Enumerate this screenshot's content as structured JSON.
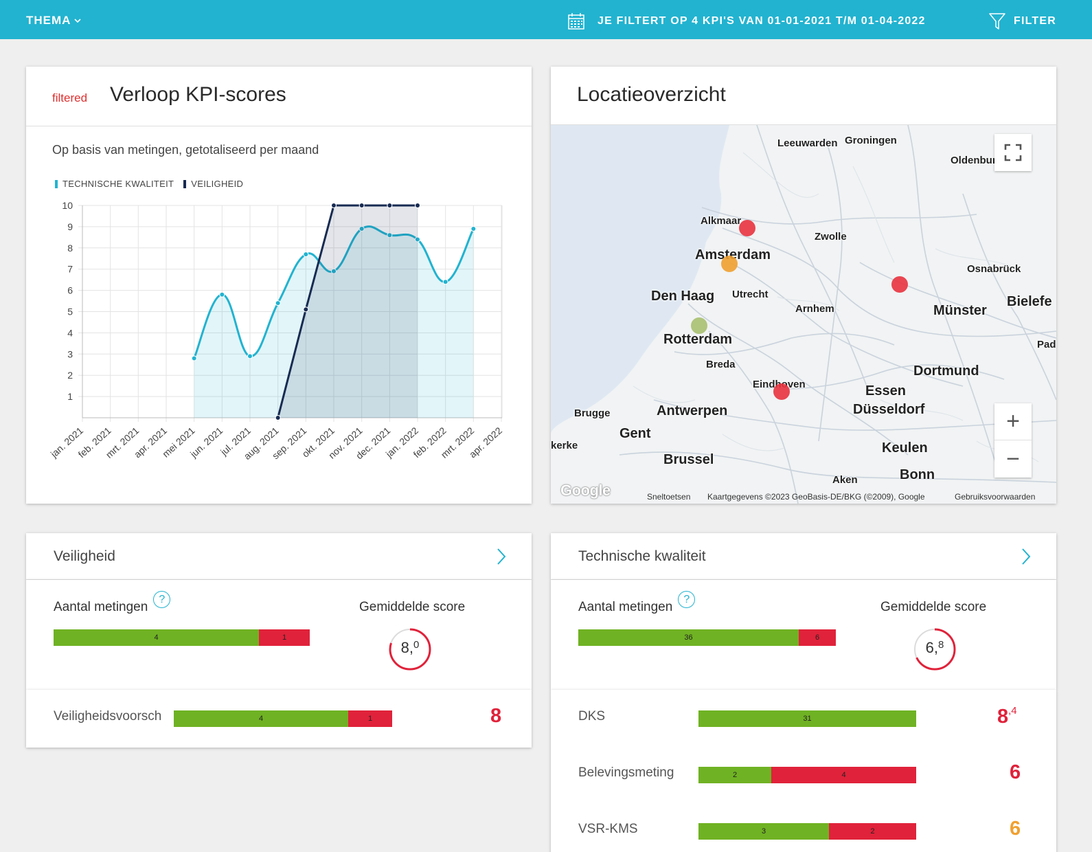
{
  "topbar": {
    "thema_label": "THEMA",
    "filter_text": "JE FILTERT OP 4 KPI'S VAN 01-01-2021 T/M 01-04-2022",
    "filter_button": "FILTER"
  },
  "chart_card": {
    "tag": "filtered",
    "title": "Verloop KPI-scores",
    "subtitle": "Op basis van metingen, getotaliseerd per maand"
  },
  "chart_data": {
    "type": "area",
    "categories": [
      "jan. 2021",
      "feb. 2021",
      "mrt. 2021",
      "apr. 2021",
      "mei 2021",
      "jun. 2021",
      "jul. 2021",
      "aug. 2021",
      "sep. 2021",
      "okt. 2021",
      "nov. 2021",
      "dec. 2021",
      "jan. 2022",
      "feb. 2022",
      "mrt. 2022",
      "apr. 2022"
    ],
    "ylim": [
      0,
      10
    ],
    "yticks": [
      1,
      2,
      3,
      4,
      5,
      6,
      7,
      8,
      9,
      10
    ],
    "legend_position": "top-left",
    "grid": true,
    "series": [
      {
        "name": "TECHNISCHE KWALITEIT",
        "color": "#22b3d0",
        "values": [
          null,
          null,
          null,
          null,
          2.8,
          5.8,
          2.9,
          5.4,
          7.7,
          6.9,
          8.9,
          8.6,
          8.4,
          6.4,
          8.9,
          null
        ]
      },
      {
        "name": "VEILIGHEID",
        "color": "#172b52",
        "values": [
          null,
          null,
          null,
          null,
          null,
          null,
          null,
          0,
          5.1,
          10,
          10,
          10,
          10,
          null,
          null,
          null
        ]
      }
    ]
  },
  "map_card": {
    "title": "Locatieoverzicht",
    "labels": [
      {
        "text": "Leeuwarden",
        "size": "small"
      },
      {
        "text": "Groningen",
        "size": "small"
      },
      {
        "text": "Oldenburg",
        "size": "small"
      },
      {
        "text": "Alkmaar",
        "size": "small"
      },
      {
        "text": "Zwolle",
        "size": "small"
      },
      {
        "text": "Amsterdam",
        "size": "large"
      },
      {
        "text": "Osnabrück",
        "size": "small"
      },
      {
        "text": "Den Haag",
        "size": "large"
      },
      {
        "text": "Utrecht",
        "size": "small"
      },
      {
        "text": "Arnhem",
        "size": "small"
      },
      {
        "text": "Münster",
        "size": "large"
      },
      {
        "text": "Bielefe",
        "size": "large"
      },
      {
        "text": "Rotterdam",
        "size": "large"
      },
      {
        "text": "Pad",
        "size": "small"
      },
      {
        "text": "Breda",
        "size": "small"
      },
      {
        "text": "Dortmund",
        "size": "large"
      },
      {
        "text": "Eindhoven",
        "size": "small"
      },
      {
        "text": "Essen",
        "size": "large"
      },
      {
        "text": "Brugge",
        "size": "small"
      },
      {
        "text": "Antwerpen",
        "size": "large"
      },
      {
        "text": "Düsseldorf",
        "size": "large"
      },
      {
        "text": "Gent",
        "size": "large"
      },
      {
        "text": "kerke",
        "size": "small"
      },
      {
        "text": "Keulen",
        "size": "large"
      },
      {
        "text": "Brussel",
        "size": "large"
      },
      {
        "text": "Bonn",
        "size": "large"
      },
      {
        "text": "Aken",
        "size": "small"
      }
    ],
    "footer": {
      "shortcuts": "Sneltoetsen",
      "attribution": "Kaartgegevens ©2023 GeoBasis-DE/BKG (©2009), Google",
      "terms": "Gebruiksvoorwaarden",
      "logo": "Google"
    },
    "zoom_in": "+",
    "zoom_out": "−",
    "markers": [
      {
        "place": "Alkmaar",
        "color": "#e8333f"
      },
      {
        "place": "Amsterdam",
        "color": "#f0a030"
      },
      {
        "place": "Rotterdam",
        "color": "#a8c070"
      },
      {
        "place": "Osnabrück-west",
        "color": "#e8333f"
      },
      {
        "place": "Eindhoven",
        "color": "#e8333f"
      }
    ]
  },
  "veiligheid": {
    "title": "Veiligheid",
    "metingen_label": "Aantal metingen",
    "gem_label": "Gemiddelde score",
    "bar": {
      "green": 4,
      "red": 1
    },
    "gauge_int": "8,",
    "gauge_dec": "0",
    "gauge_fraction": 0.8,
    "rows": [
      {
        "label": "Veiligheidsvoorsch",
        "green": 4,
        "red": 1,
        "score": "8",
        "score_dec": "",
        "score_color": "#e0223a"
      }
    ]
  },
  "technische": {
    "title": "Technische kwaliteit",
    "metingen_label": "Aantal metingen",
    "gem_label": "Gemiddelde score",
    "bar": {
      "green": 36,
      "red": 6
    },
    "gauge_int": "6,",
    "gauge_dec": "8",
    "gauge_fraction": 0.68,
    "rows": [
      {
        "label": "DKS",
        "green": 31,
        "red": null,
        "score": "8",
        "score_dec": ",4",
        "score_color": "#e0223a"
      },
      {
        "label": "Belevingsmeting",
        "green": 2,
        "red": 4,
        "score": "6",
        "score_dec": "",
        "score_color": "#e0223a"
      },
      {
        "label": "VSR-KMS",
        "green": 3,
        "red": 2,
        "score": "6",
        "score_dec": "",
        "score_color": "#f0a030"
      }
    ]
  },
  "colors": {
    "accent": "#22b3d0",
    "navy": "#172b52",
    "green": "#6fb223",
    "red": "#e0223a",
    "orange": "#f0a030"
  }
}
